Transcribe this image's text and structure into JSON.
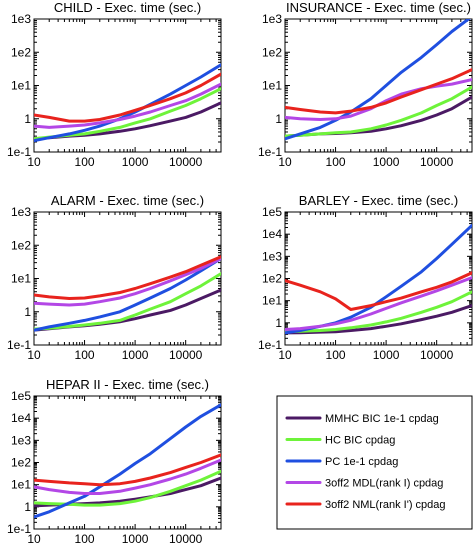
{
  "figure": {
    "legend": {
      "placement": "bottom-right",
      "entries": [
        {
          "label": "MMHC BIC 1e-1 cpdag",
          "color": "#4b1a64"
        },
        {
          "label": "HC BIC cpdag",
          "color": "#6ef33a"
        },
        {
          "label": "PC 1e-1 cpdag",
          "color": "#1f4fe0"
        },
        {
          "label": "3off2 MDL(rank I) cpdag",
          "color": "#b347e6"
        },
        {
          "label": "3off2 NML(rank I') cpdag",
          "color": "#e8231d"
        }
      ]
    }
  },
  "chart_data": [
    {
      "type": "line",
      "title": "CHILD - Exec. time (sec.)",
      "xscale": "log",
      "yscale": "log",
      "xlim": [
        10,
        50000
      ],
      "ylim": [
        0.1,
        1000
      ],
      "xticks": [
        "10",
        "100",
        "1000",
        "10000"
      ],
      "yticks": [
        "1e-1",
        "1",
        "1e1",
        "1e2",
        "1e3"
      ],
      "ytick_values": [
        0.1,
        1,
        10,
        100,
        1000
      ],
      "grid": false,
      "x": [
        10,
        20,
        50,
        100,
        200,
        500,
        1000,
        2000,
        5000,
        10000,
        20000,
        50000
      ],
      "series": [
        {
          "name": "MMHC BIC 1e-1 cpdag",
          "color": "#4b1a64",
          "values": [
            0.25,
            0.27,
            0.3,
            0.32,
            0.35,
            0.42,
            0.5,
            0.62,
            0.85,
            1.1,
            1.6,
            3.0
          ]
        },
        {
          "name": "HC BIC cpdag",
          "color": "#6ef33a",
          "values": [
            0.25,
            0.28,
            0.32,
            0.35,
            0.42,
            0.55,
            0.75,
            1.0,
            1.7,
            2.5,
            4.0,
            8.0
          ]
        },
        {
          "name": "PC 1e-1 cpdag",
          "color": "#1f4fe0",
          "values": [
            0.22,
            0.27,
            0.35,
            0.45,
            0.6,
            1.0,
            1.6,
            2.7,
            5.5,
            10,
            18,
            42
          ]
        },
        {
          "name": "3off2 MDL(rank I) cpdag",
          "color": "#b347e6",
          "values": [
            0.6,
            0.55,
            0.6,
            0.65,
            0.75,
            0.95,
            1.2,
            1.6,
            2.5,
            3.5,
            5.5,
            11
          ]
        },
        {
          "name": "3off2 NML(rank I') cpdag",
          "color": "#e8231d",
          "values": [
            1.3,
            1.1,
            0.85,
            0.85,
            0.95,
            1.3,
            1.8,
            2.5,
            4.0,
            6.0,
            10,
            22
          ]
        }
      ]
    },
    {
      "type": "line",
      "title": "INSURANCE - Exec. time (sec.)",
      "xscale": "log",
      "yscale": "log",
      "xlim": [
        10,
        50000
      ],
      "ylim": [
        0.1,
        1000
      ],
      "xticks": [
        "10",
        "100",
        "1000",
        "10000"
      ],
      "yticks": [
        "1e-1",
        "1",
        "1e1",
        "1e2",
        "1e3"
      ],
      "ytick_values": [
        0.1,
        1,
        10,
        100,
        1000
      ],
      "grid": false,
      "x": [
        10,
        20,
        50,
        100,
        200,
        500,
        1000,
        2000,
        5000,
        10000,
        20000,
        50000
      ],
      "series": [
        {
          "name": "MMHC BIC 1e-1 cpdag",
          "color": "#4b1a64",
          "values": [
            0.3,
            0.32,
            0.35,
            0.36,
            0.38,
            0.42,
            0.5,
            0.62,
            0.9,
            1.3,
            2.0,
            4.5
          ]
        },
        {
          "name": "HC BIC cpdag",
          "color": "#6ef33a",
          "values": [
            0.3,
            0.32,
            0.35,
            0.38,
            0.4,
            0.5,
            0.65,
            0.9,
            1.5,
            2.5,
            4.0,
            9.0
          ]
        },
        {
          "name": "PC 1e-1 cpdag",
          "color": "#1f4fe0",
          "values": [
            0.25,
            0.35,
            0.55,
            0.9,
            1.6,
            4.0,
            10,
            25,
            70,
            170,
            420,
            1200
          ]
        },
        {
          "name": "3off2 MDL(rank I) cpdag",
          "color": "#b347e6",
          "values": [
            1.1,
            1.0,
            0.95,
            1.0,
            1.2,
            2.0,
            3.5,
            5.5,
            8.0,
            9.5,
            11,
            15
          ]
        },
        {
          "name": "3off2 NML(rank I') cpdag",
          "color": "#e8231d",
          "values": [
            2.2,
            1.9,
            1.6,
            1.5,
            1.7,
            2.2,
            3.0,
            4.5,
            7.5,
            11,
            16,
            30
          ]
        }
      ]
    },
    {
      "type": "line",
      "title": "ALARM - Exec. time (sec.)",
      "xscale": "log",
      "yscale": "log",
      "xlim": [
        10,
        50000
      ],
      "ylim": [
        0.1,
        1000
      ],
      "xticks": [
        "10",
        "100",
        "1000",
        "10000"
      ],
      "yticks": [
        "1e-1",
        "1",
        "1e1",
        "1e2",
        "1e3"
      ],
      "ytick_values": [
        0.1,
        1,
        10,
        100,
        1000
      ],
      "grid": false,
      "x": [
        10,
        20,
        50,
        100,
        200,
        500,
        1000,
        2000,
        5000,
        10000,
        20000,
        50000
      ],
      "series": [
        {
          "name": "MMHC BIC 1e-1 cpdag",
          "color": "#4b1a64",
          "values": [
            0.28,
            0.31,
            0.35,
            0.38,
            0.42,
            0.5,
            0.62,
            0.8,
            1.1,
            1.6,
            2.5,
            4.5
          ]
        },
        {
          "name": "HC BIC cpdag",
          "color": "#6ef33a",
          "values": [
            0.3,
            0.32,
            0.36,
            0.4,
            0.45,
            0.55,
            0.8,
            1.2,
            2.0,
            3.5,
            6.0,
            14
          ]
        },
        {
          "name": "PC 1e-1 cpdag",
          "color": "#1f4fe0",
          "values": [
            0.28,
            0.35,
            0.45,
            0.55,
            0.7,
            1.0,
            1.6,
            2.6,
            5.0,
            9.0,
            17,
            40
          ]
        },
        {
          "name": "3off2 MDL(rank I) cpdag",
          "color": "#b347e6",
          "values": [
            1.8,
            1.7,
            1.6,
            1.7,
            2.0,
            2.6,
            3.5,
            5.0,
            8.5,
            13,
            20,
            40
          ]
        },
        {
          "name": "3off2 NML(rank I') cpdag",
          "color": "#e8231d",
          "values": [
            3.2,
            2.8,
            2.5,
            2.6,
            3.0,
            3.8,
            5.0,
            7.0,
            11,
            16,
            25,
            45
          ]
        }
      ]
    },
    {
      "type": "line",
      "title": "BARLEY - Exec. time (sec.)",
      "xscale": "log",
      "yscale": "log",
      "xlim": [
        10,
        50000
      ],
      "ylim": [
        0.1,
        100000
      ],
      "xticks": [
        "10",
        "100",
        "1000",
        "10000"
      ],
      "yticks": [
        "1e-1",
        "1",
        "1e1",
        "1e2",
        "1e3",
        "1e4",
        "1e5"
      ],
      "ytick_values": [
        0.1,
        1,
        10,
        100,
        1000,
        10000,
        100000
      ],
      "grid": false,
      "x": [
        10,
        20,
        50,
        100,
        200,
        500,
        1000,
        2000,
        5000,
        10000,
        20000,
        50000
      ],
      "series": [
        {
          "name": "MMHC BIC 1e-1 cpdag",
          "color": "#4b1a64",
          "values": [
            0.35,
            0.36,
            0.38,
            0.4,
            0.45,
            0.55,
            0.7,
            0.9,
            1.4,
            2.0,
            3.0,
            6.0
          ]
        },
        {
          "name": "HC BIC cpdag",
          "color": "#6ef33a",
          "values": [
            0.4,
            0.42,
            0.45,
            0.5,
            0.6,
            0.8,
            1.1,
            1.6,
            3.0,
            5.0,
            9.0,
            25
          ]
        },
        {
          "name": "PC 1e-1 cpdag",
          "color": "#1f4fe0",
          "values": [
            0.35,
            0.45,
            0.7,
            1.0,
            1.8,
            5.0,
            15,
            45,
            200,
            800,
            3500,
            25000
          ]
        },
        {
          "name": "3off2 MDL(rank I) cpdag",
          "color": "#b347e6",
          "values": [
            0.5,
            0.55,
            0.7,
            0.9,
            1.3,
            2.5,
            4.5,
            8.0,
            16,
            28,
            50,
            110
          ]
        },
        {
          "name": "3off2 NML(rank I') cpdag",
          "color": "#e8231d",
          "values": [
            80,
            50,
            25,
            12,
            4.0,
            6.0,
            9.0,
            13,
            25,
            40,
            70,
            180
          ]
        }
      ]
    },
    {
      "type": "line",
      "title": "HEPAR II - Exec. time (sec.)",
      "xscale": "log",
      "yscale": "log",
      "xlim": [
        10,
        50000
      ],
      "ylim": [
        0.1,
        100000
      ],
      "xticks": [
        "10",
        "100",
        "1000",
        "10000"
      ],
      "yticks": [
        "1e-1",
        "1",
        "1e1",
        "1e2",
        "1e3",
        "1e4",
        "1e5"
      ],
      "ytick_values": [
        0.1,
        1,
        10,
        100,
        1000,
        10000,
        100000
      ],
      "grid": false,
      "x": [
        10,
        20,
        50,
        100,
        200,
        500,
        1000,
        2000,
        5000,
        10000,
        20000,
        50000
      ],
      "series": [
        {
          "name": "MMHC BIC 1e-1 cpdag",
          "color": "#4b1a64",
          "values": [
            1.1,
            1.2,
            1.3,
            1.4,
            1.5,
            1.8,
            2.2,
            2.8,
            4.0,
            6.0,
            9.0,
            20
          ]
        },
        {
          "name": "HC BIC cpdag",
          "color": "#6ef33a",
          "values": [
            1.5,
            1.4,
            1.3,
            1.2,
            1.2,
            1.4,
            1.8,
            2.6,
            5.0,
            9.0,
            16,
            40
          ]
        },
        {
          "name": "PC 1e-1 cpdag",
          "color": "#1f4fe0",
          "values": [
            0.35,
            0.6,
            1.5,
            3.0,
            8.0,
            30,
            90,
            250,
            1200,
            4000,
            12000,
            40000
          ]
        },
        {
          "name": "3off2 MDL(rank I) cpdag",
          "color": "#b347e6",
          "values": [
            8.0,
            6.0,
            4.5,
            4.0,
            4.0,
            5.0,
            7.0,
            10,
            18,
            30,
            55,
            130
          ]
        },
        {
          "name": "3off2 NML(rank I') cpdag",
          "color": "#e8231d",
          "values": [
            16,
            14,
            12,
            11,
            10,
            11,
            14,
            20,
            35,
            60,
            100,
            220
          ]
        }
      ]
    }
  ]
}
